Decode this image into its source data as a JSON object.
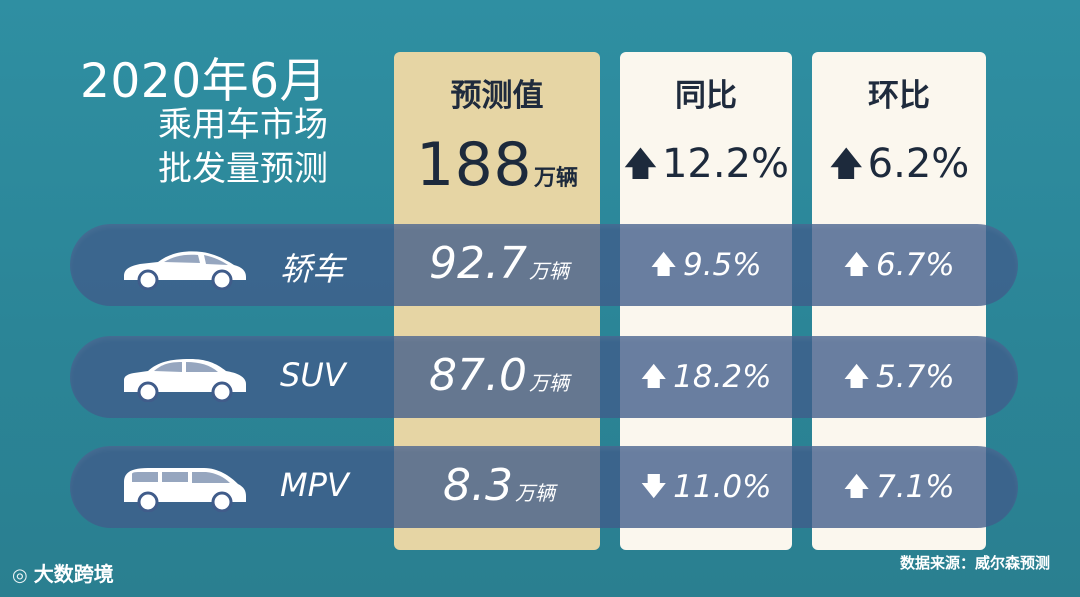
{
  "title": {
    "line1": "2020年6月",
    "line2": "乘用车市场",
    "line3": "批发量预测"
  },
  "columns": {
    "forecast": {
      "header": "预测值",
      "value": "188",
      "unit": "万辆"
    },
    "yoy": {
      "header": "同比",
      "arrow": "up",
      "value": "12.2%"
    },
    "mom": {
      "header": "环比",
      "arrow": "up",
      "value": "6.2%"
    }
  },
  "rows": [
    {
      "icon": "sedan-icon",
      "label": "轿车",
      "value": "92.7",
      "unit": "万辆",
      "yoy_arrow": "up",
      "yoy": "9.5%",
      "mom_arrow": "up",
      "mom": "6.7%"
    },
    {
      "icon": "suv-icon",
      "label": "SUV",
      "value": "87.0",
      "unit": "万辆",
      "yoy_arrow": "up",
      "yoy": "18.2%",
      "mom_arrow": "up",
      "mom": "5.7%"
    },
    {
      "icon": "mpv-icon",
      "label": "MPV",
      "value": "8.3",
      "unit": "万辆",
      "yoy_arrow": "down",
      "yoy": "11.0%",
      "mom_arrow": "up",
      "mom": "7.1%"
    }
  ],
  "footer": {
    "brand": "大数跨境",
    "source": "数据来源：威尔森预测"
  },
  "colors": {
    "background": "#2b8597",
    "forecast_column": "#e6d5a4",
    "comparison_column": "#fbf7ee",
    "row_band": "#405c8a",
    "dark_text": "#1d2a3c"
  }
}
